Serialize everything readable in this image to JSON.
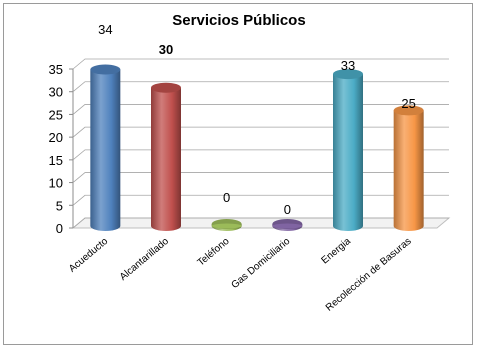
{
  "chart_data": {
    "type": "bar",
    "title": "Servicios Públicos",
    "categories": [
      "Acueducto",
      "Alcantarillado",
      "Teléfono",
      "Gas Domiciliario",
      "Energia",
      "Recolección de Basuras"
    ],
    "values": [
      34,
      30,
      0,
      0,
      33,
      25
    ],
    "data_labels": [
      "34",
      "30",
      "0",
      "0",
      "33",
      "25"
    ],
    "colors": [
      "#4f81bd",
      "#c0504d",
      "#9bbb59",
      "#8064a2",
      "#4bacc6",
      "#f79646"
    ],
    "ylim": [
      0,
      35
    ],
    "yticks": [
      "0",
      "5",
      "10",
      "15",
      "20",
      "25",
      "30",
      "35"
    ],
    "grid": true,
    "legend": "none",
    "style": "3d cylinder"
  }
}
